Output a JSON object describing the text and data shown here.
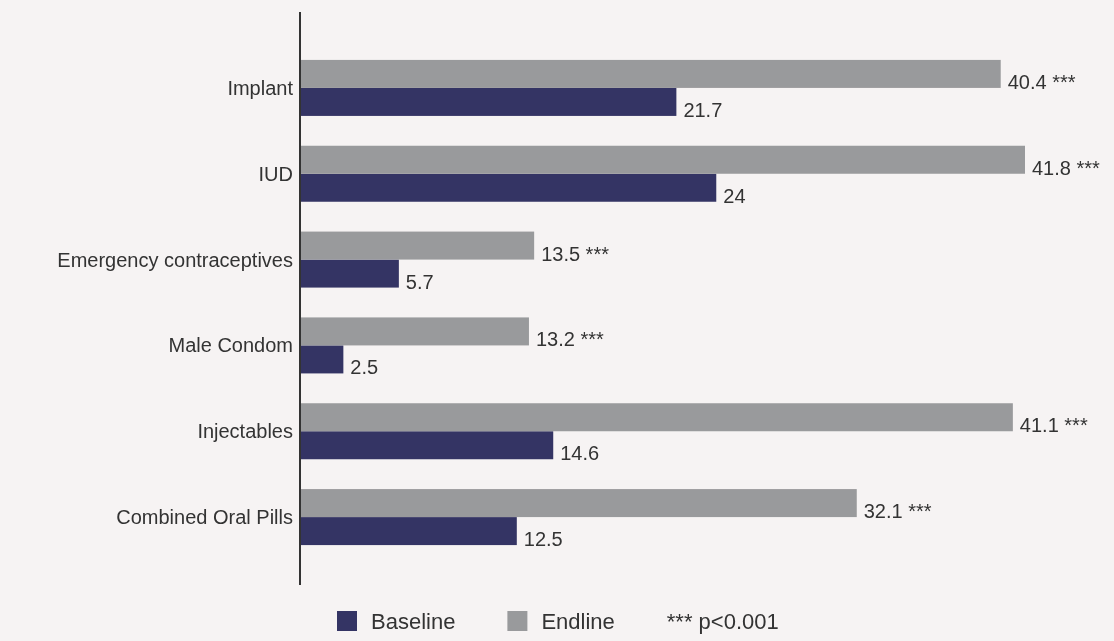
{
  "chart_data": {
    "type": "bar",
    "orientation": "horizontal",
    "categories": [
      "Implant",
      "IUD",
      "Emergency contraceptives",
      "Male Condom",
      "Injectables",
      "Combined Oral Pills"
    ],
    "series": [
      {
        "name": "Baseline",
        "color": "#343464",
        "values": [
          21.7,
          24,
          5.7,
          2.5,
          14.6,
          12.5
        ],
        "value_labels": [
          "21.7",
          "24",
          "5.7",
          "2.5",
          "14.6",
          "12.5"
        ]
      },
      {
        "name": "Endline",
        "color": "#999a9c",
        "values": [
          40.4,
          41.8,
          13.5,
          13.2,
          41.1,
          32.1
        ],
        "value_labels": [
          "40.4 ***",
          "41.8 ***",
          "13.5 ***",
          "13.2 ***",
          "41.1 ***",
          "32.1 ***"
        ]
      }
    ],
    "legend": "bottom",
    "annotations": [
      "*** p<0.001"
    ]
  }
}
